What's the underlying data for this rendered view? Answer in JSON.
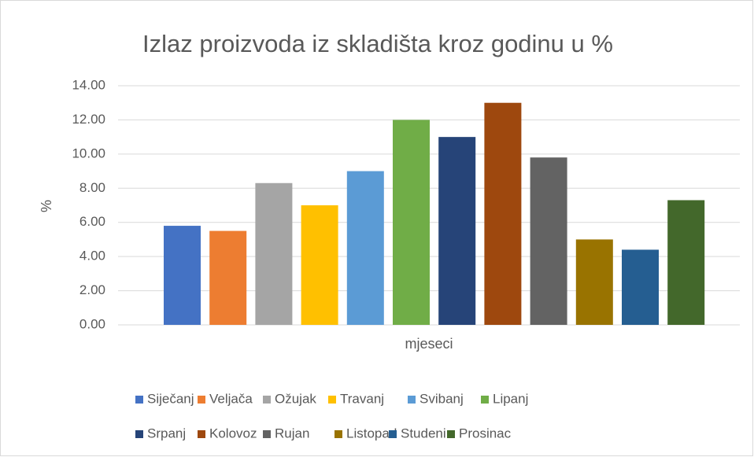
{
  "chart_data": {
    "type": "bar",
    "title": "Izlaz proizvoda iz skladišta kroz godinu u %",
    "xlabel": "mjeseci",
    "ylabel": "%",
    "categories": [
      null
    ],
    "series": [
      {
        "name": "Siječanj",
        "color": "#4472c4",
        "values": [
          5.8
        ]
      },
      {
        "name": "Veljača",
        "color": "#ed7d31",
        "values": [
          5.5
        ]
      },
      {
        "name": "Ožujak",
        "color": "#a5a5a5",
        "values": [
          8.3
        ]
      },
      {
        "name": "Travanj",
        "color": "#ffc000",
        "values": [
          7.0
        ]
      },
      {
        "name": "Svibanj",
        "color": "#5b9bd5",
        "values": [
          9.0
        ]
      },
      {
        "name": "Lipanj",
        "color": "#70ad47",
        "values": [
          12.0
        ]
      },
      {
        "name": "Srpanj",
        "color": "#264478",
        "values": [
          11.0
        ]
      },
      {
        "name": "Kolovoz",
        "color": "#9e480e",
        "values": [
          13.0
        ]
      },
      {
        "name": "Rujan",
        "color": "#636363",
        "values": [
          9.8
        ]
      },
      {
        "name": "Listopad",
        "color": "#997300",
        "values": [
          5.0
        ]
      },
      {
        "name": "Studeni",
        "color": "#255e91",
        "values": [
          4.4
        ]
      },
      {
        "name": "Prosinac",
        "color": "#43682b",
        "values": [
          7.3
        ]
      }
    ],
    "ylim": [
      0,
      14
    ],
    "yticks": [
      {
        "value": 0,
        "label": "0.00"
      },
      {
        "value": 2,
        "label": "2.00"
      },
      {
        "value": 4,
        "label": "4.00"
      },
      {
        "value": 6,
        "label": "6.00"
      },
      {
        "value": 8,
        "label": "8.00"
      },
      {
        "value": 10,
        "label": "10.00"
      },
      {
        "value": 12,
        "label": "12.00"
      },
      {
        "value": 14,
        "label": "14.00"
      }
    ],
    "grid": true,
    "legend": "bottom"
  }
}
